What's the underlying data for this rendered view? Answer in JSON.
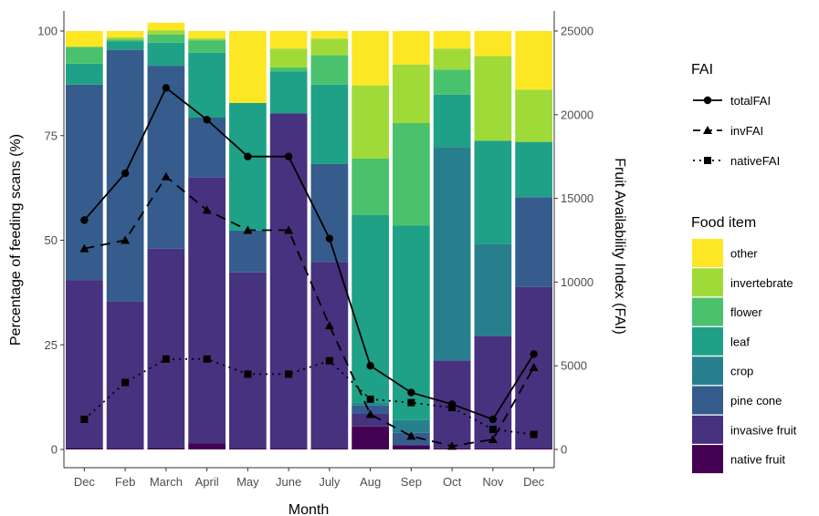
{
  "chart_data": {
    "type": "bar",
    "stacked": true,
    "categories": [
      "Dec",
      "Feb",
      "March",
      "April",
      "May",
      "June",
      "July",
      "Aug",
      "Sep",
      "Oct",
      "Nov",
      "Dec"
    ],
    "xlabel": "Month",
    "ylabel": "Percentage of feeding scans (%)",
    "y2label": "Fruit Availability Index (FAI)",
    "ylim": [
      0,
      100
    ],
    "y2lim": [
      0,
      25000
    ],
    "yticks": [
      0,
      25,
      50,
      75,
      100
    ],
    "y2ticks": [
      0,
      5000,
      10000,
      15000,
      20000,
      25000
    ],
    "grid": false,
    "bar_series_title": "Food item",
    "bar_series": [
      {
        "name": "native fruit",
        "color": "#440154",
        "values": [
          0.5,
          0.3,
          0.5,
          1.5,
          0.3,
          0.3,
          0.3,
          5.5,
          1.0,
          0.3,
          0.3,
          0.3
        ]
      },
      {
        "name": "invasive fruit",
        "color": "#46327e",
        "values": [
          40.0,
          35.0,
          47.5,
          63.5,
          42.0,
          80.0,
          44.5,
          3.0,
          0.0,
          21.0,
          26.8,
          38.5
        ]
      },
      {
        "name": "pine cone",
        "color": "#365c8d",
        "values": [
          46.7,
          60.2,
          43.7,
          14.3,
          10.0,
          0.0,
          23.4,
          2.0,
          3.0,
          0.0,
          0.0,
          21.5
        ]
      },
      {
        "name": "crop",
        "color": "#277f8e",
        "values": [
          0.0,
          0.0,
          0.0,
          0.0,
          0.0,
          0.0,
          0.0,
          0.5,
          3.0,
          51.0,
          22.0,
          0.0
        ]
      },
      {
        "name": "leaf",
        "color": "#1fa187",
        "values": [
          5.0,
          2.0,
          5.5,
          15.5,
          30.5,
          10.0,
          19.0,
          45.0,
          46.5,
          12.5,
          24.7,
          13.2
        ]
      },
      {
        "name": "flower",
        "color": "#4ac16d",
        "values": [
          4.0,
          0.5,
          2.0,
          3.0,
          0.0,
          1.0,
          7.0,
          13.5,
          24.5,
          6.0,
          0.0,
          0.0
        ]
      },
      {
        "name": "invertebrate",
        "color": "#a0da39",
        "values": [
          0.0,
          0.5,
          1.0,
          0.5,
          0.0,
          4.5,
          4.0,
          17.5,
          14.0,
          5.0,
          20.2,
          12.5
        ]
      },
      {
        "name": "other",
        "color": "#fde725",
        "values": [
          3.8,
          1.5,
          1.8,
          1.7,
          17.2,
          4.2,
          1.8,
          13.0,
          8.0,
          4.2,
          6.0,
          14.0
        ]
      }
    ],
    "line_series_title": "FAI",
    "line_series": [
      {
        "name": "totalFAI",
        "style": "solid",
        "marker": "circle",
        "values": [
          13700,
          16500,
          21600,
          19700,
          17500,
          17500,
          12600,
          5000,
          3400,
          2700,
          1800,
          5700
        ]
      },
      {
        "name": "invFAI",
        "style": "dashed",
        "marker": "triangle",
        "values": [
          12000,
          12500,
          16300,
          14300,
          13100,
          13100,
          7400,
          2100,
          800,
          200,
          600,
          4900
        ]
      },
      {
        "name": "nativeFAI",
        "style": "dotted",
        "marker": "square",
        "values": [
          1800,
          4000,
          5400,
          5400,
          4500,
          4500,
          5300,
          3000,
          2800,
          2500,
          1200,
          900
        ]
      }
    ]
  }
}
